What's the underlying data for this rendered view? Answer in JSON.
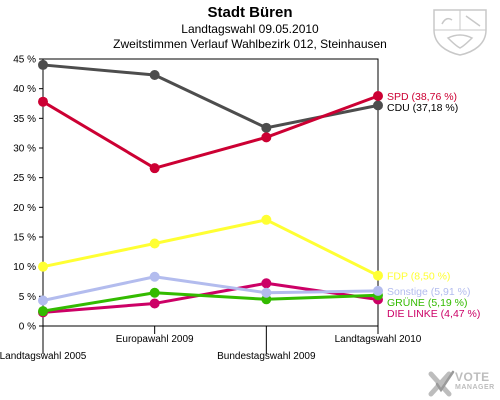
{
  "header": {
    "title": "Stadt Büren",
    "subtitle": "Landtagswahl 09.05.2010",
    "subtitle2": "Zweitstimmen Verlauf Wahlbezirk 012, Steinhausen"
  },
  "logo": {
    "line1": "VOTE",
    "line2": "MANAGER",
    "icon": "x-check-icon"
  },
  "crest": {
    "icon": "coat-of-arms-icon"
  },
  "chart_data": {
    "type": "line",
    "title": "Zweitstimmen Verlauf Wahlbezirk 012, Steinhausen",
    "xlabel": "",
    "ylabel": "",
    "categories": [
      "Landtagswahl 2005",
      "Europawahl 2009",
      "Bundestagswahl 2009",
      "Landtagswahl 2010"
    ],
    "ylim": [
      0,
      45
    ],
    "yticks": [
      "0 %",
      "5 %",
      "10 %",
      "15 %",
      "20 %",
      "25 %",
      "30 %",
      "35 %",
      "40 %",
      "45 %"
    ],
    "grid": false,
    "series": [
      {
        "name": "SPD",
        "label": "SPD (38,76 %)",
        "color": "#cc0033",
        "values": [
          37.8,
          26.6,
          31.8,
          38.76
        ]
      },
      {
        "name": "CDU",
        "label": "CDU (37,18 %)",
        "color": "#4d4d4d",
        "values": [
          44.0,
          42.3,
          33.4,
          37.18
        ]
      },
      {
        "name": "FDP",
        "label": "FDP (8,50 %)",
        "color": "#ffff33",
        "values": [
          10.0,
          13.9,
          17.9,
          8.5
        ]
      },
      {
        "name": "Sonstige",
        "label": "Sonstige (5,91 %)",
        "color": "#b3bcee",
        "values": [
          4.3,
          8.3,
          5.6,
          5.91
        ]
      },
      {
        "name": "GRÜNE",
        "label": "GRÜNE (5,19 %)",
        "color": "#33bb00",
        "values": [
          2.5,
          5.6,
          4.5,
          5.19
        ]
      },
      {
        "name": "DIE LINKE",
        "label": "DIE LINKE (4,47 %)",
        "color": "#cc0066",
        "values": [
          2.3,
          3.8,
          7.2,
          4.47
        ]
      }
    ]
  }
}
